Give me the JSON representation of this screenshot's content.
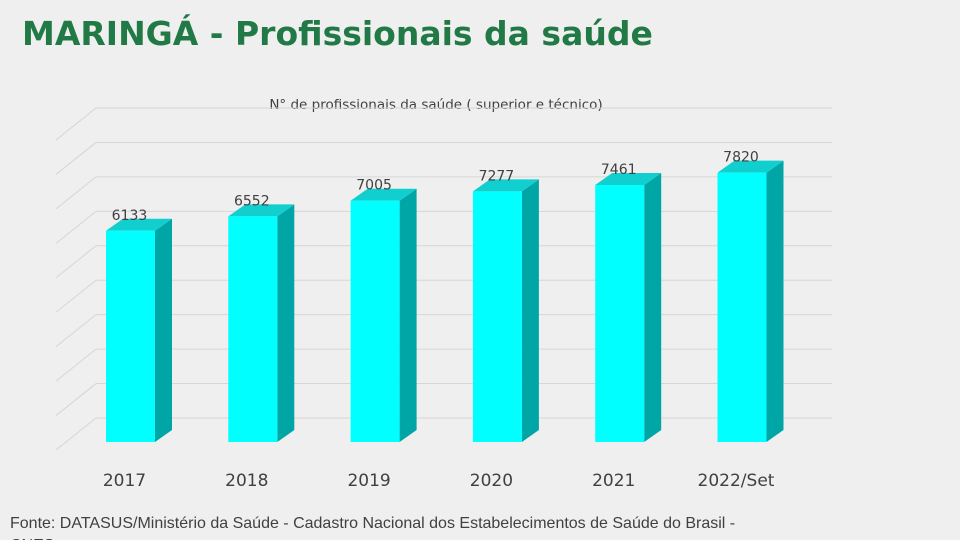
{
  "page": {
    "title": "MARINGÁ - Profissionais da saúde",
    "source": "Fonte:  DATASUS/Ministério da Saúde - Cadastro Nacional dos Estabelecimentos de Saúde do Brasil - CNES"
  },
  "colors": {
    "title": "#217a45",
    "bar_front": "#00ffff",
    "bar_side": "#00a6a6",
    "bar_top": "#12cfcf",
    "grid": "#d6d6d6",
    "text": "#404040",
    "background": "#efefef"
  },
  "chart_data": {
    "type": "bar",
    "title": "N° de profissionais da saúde ( superior e técnico)",
    "categories": [
      "2017",
      "2018",
      "2019",
      "2020",
      "2021",
      "2022/Set"
    ],
    "values": [
      6133,
      6552,
      7005,
      7277,
      7461,
      7820
    ],
    "data_labels": [
      "6133",
      "6552",
      "7005",
      "7277",
      "7461",
      "7820"
    ],
    "xlabel": "",
    "ylabel": "",
    "ylim": [
      0,
      9000
    ],
    "grid": true,
    "legend": "none",
    "style": "3d-column"
  }
}
